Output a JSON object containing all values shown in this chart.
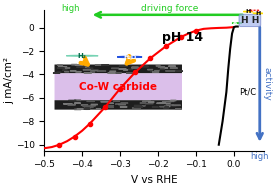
{
  "title": "",
  "xlabel": "V vs RHE",
  "ylabel": "j mA/cm²",
  "xlim": [
    -0.5,
    0.08
  ],
  "ylim": [
    -10.5,
    1.5
  ],
  "yticks": [
    0,
    -2,
    -4,
    -6,
    -8,
    -10
  ],
  "xticks": [
    -0.5,
    -0.4,
    -0.3,
    -0.2,
    -0.1,
    0.0
  ],
  "red_curve_x": [
    -0.5,
    -0.48,
    -0.46,
    -0.44,
    -0.42,
    -0.4,
    -0.38,
    -0.36,
    -0.34,
    -0.32,
    -0.3,
    -0.28,
    -0.26,
    -0.24,
    -0.22,
    -0.2,
    -0.18,
    -0.16,
    -0.14,
    -0.12,
    -0.1,
    -0.08,
    -0.06,
    -0.04,
    -0.02,
    0.0
  ],
  "red_curve_y": [
    -10.3,
    -10.2,
    -10.0,
    -9.7,
    -9.3,
    -8.8,
    -8.2,
    -7.5,
    -6.8,
    -6.0,
    -5.2,
    -4.5,
    -3.8,
    -3.2,
    -2.6,
    -2.1,
    -1.6,
    -1.2,
    -0.8,
    -0.5,
    -0.25,
    -0.1,
    -0.05,
    -0.02,
    0.0,
    0.05
  ],
  "red_markers_x": [
    -0.46,
    -0.42,
    -0.38,
    -0.34,
    -0.3,
    -0.26,
    -0.22,
    -0.18,
    -0.14,
    -0.1
  ],
  "red_markers_y": [
    -10.0,
    -9.3,
    -8.2,
    -6.8,
    -5.2,
    -3.8,
    -2.6,
    -1.6,
    -0.8,
    -0.25
  ],
  "black_curve_x": [
    -0.04,
    -0.03,
    -0.02,
    -0.015,
    -0.01,
    -0.005,
    0.0,
    0.005,
    0.01
  ],
  "black_curve_y": [
    -10.0,
    -8.0,
    -5.5,
    -3.5,
    -1.8,
    -0.5,
    0.05,
    0.1,
    0.1
  ],
  "pH_text": "pH 14",
  "PtC_text": "Pt/C",
  "driving_force_text": "driving force",
  "high_left_text": "high",
  "high_bottom_text": "high",
  "activity_text": "activity",
  "cowc_text": "Co-W carbide",
  "red_color": "#ff0000",
  "black_color": "#000000",
  "green_color": "#22cc22",
  "blue_arrow_color": "#4472c4",
  "bg_color": "#ffffff"
}
